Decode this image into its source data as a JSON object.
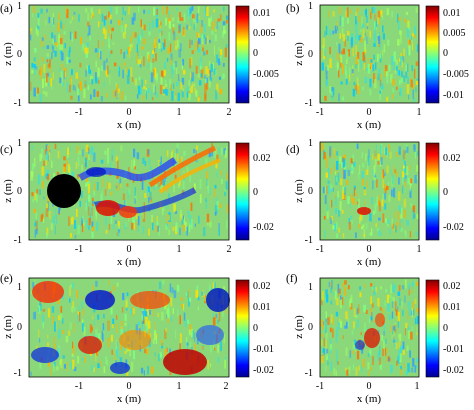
{
  "figure": {
    "panels": [
      {
        "label": "(a)",
        "xlabel": "x (m)",
        "ylabel": "z (m)",
        "xticks": [
          "-1",
          "0",
          "1",
          "2"
        ],
        "yticks": [
          "1",
          "0",
          "-1"
        ],
        "cbar_ticks": [
          "0.01",
          "0.005",
          "0",
          "-0.005",
          "-0.01"
        ],
        "has_cylinder": false
      },
      {
        "label": "(b)",
        "xlabel": "x (m)",
        "ylabel": "z (m)",
        "xticks": [
          "-1",
          "0",
          "1"
        ],
        "yticks": [
          "1",
          "0",
          "-1"
        ],
        "cbar_ticks": [
          "0.01",
          "0.005",
          "0",
          "-0.005",
          "-0.01"
        ],
        "has_cylinder": false
      },
      {
        "label": "(c)",
        "xlabel": "x (m)",
        "ylabel": "z (m)",
        "xticks": [
          "-1",
          "0",
          "1",
          "2"
        ],
        "yticks": [
          "1",
          "0",
          "-1"
        ],
        "cbar_ticks": [
          "0.02",
          "0",
          "-0.02"
        ],
        "has_cylinder": true
      },
      {
        "label": "(d)",
        "xlabel": "x (m)",
        "ylabel": "z (m)",
        "xticks": [
          "-1",
          "0",
          "1"
        ],
        "yticks": [
          "1",
          "0",
          "-1"
        ],
        "cbar_ticks": [
          "0.02",
          "0",
          "-0.02"
        ],
        "has_cylinder": false
      },
      {
        "label": "(e)",
        "xlabel": "x (m)",
        "ylabel": "z (m)",
        "xticks": [
          "-1",
          "0",
          "1",
          "2"
        ],
        "yticks": [
          "1",
          "0",
          "-1"
        ],
        "cbar_ticks": [
          "0.02",
          "0.01",
          "0",
          "-0.01",
          "-0.02"
        ],
        "has_cylinder": false
      },
      {
        "label": "(f)",
        "xlabel": "x (m)",
        "ylabel": "z (m)",
        "xticks": [
          "-1",
          "0",
          "1"
        ],
        "yticks": [
          "1",
          "0",
          "-1"
        ],
        "cbar_ticks": [
          "0.02",
          "0.01",
          "0",
          "-0.01",
          "-0.02"
        ],
        "has_cylinder": false
      }
    ],
    "colormap": [
      "#00008f",
      "#0000ff",
      "#00ffff",
      "#ffff00",
      "#ff0000",
      "#800000"
    ]
  }
}
